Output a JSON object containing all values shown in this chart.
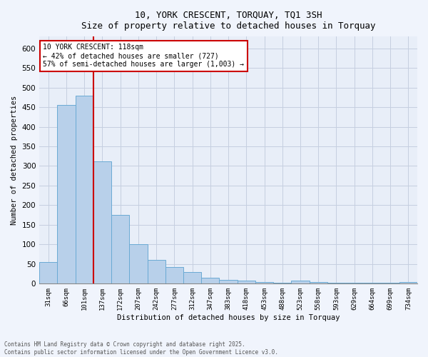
{
  "title_line1": "10, YORK CRESCENT, TORQUAY, TQ1 3SH",
  "title_line2": "Size of property relative to detached houses in Torquay",
  "xlabel": "Distribution of detached houses by size in Torquay",
  "ylabel": "Number of detached properties",
  "annotation_line1": "10 YORK CRESCENT: 118sqm",
  "annotation_line2": "← 42% of detached houses are smaller (727)",
  "annotation_line3": "57% of semi-detached houses are larger (1,003) →",
  "footer_line1": "Contains HM Land Registry data © Crown copyright and database right 2025.",
  "footer_line2": "Contains public sector information licensed under the Open Government Licence v3.0.",
  "categories": [
    "31sqm",
    "66sqm",
    "101sqm",
    "137sqm",
    "172sqm",
    "207sqm",
    "242sqm",
    "277sqm",
    "312sqm",
    "347sqm",
    "383sqm",
    "418sqm",
    "453sqm",
    "488sqm",
    "523sqm",
    "558sqm",
    "593sqm",
    "629sqm",
    "664sqm",
    "699sqm",
    "734sqm"
  ],
  "bar_values": [
    55,
    455,
    480,
    312,
    175,
    100,
    60,
    43,
    30,
    15,
    10,
    8,
    5,
    3,
    8,
    5,
    3,
    3,
    2,
    2,
    4
  ],
  "bar_color": "#b8d0ea",
  "bar_edge_color": "#6aaad4",
  "vline_position": 2.5,
  "vline_color": "#cc0000",
  "annotation_box_edge_color": "#cc0000",
  "background_color": "#e8eef8",
  "grid_color": "#c5cfe0",
  "ylim": [
    0,
    630
  ],
  "yticks": [
    0,
    50,
    100,
    150,
    200,
    250,
    300,
    350,
    400,
    450,
    500,
    550,
    600
  ],
  "fig_bg_color": "#f0f4fc"
}
